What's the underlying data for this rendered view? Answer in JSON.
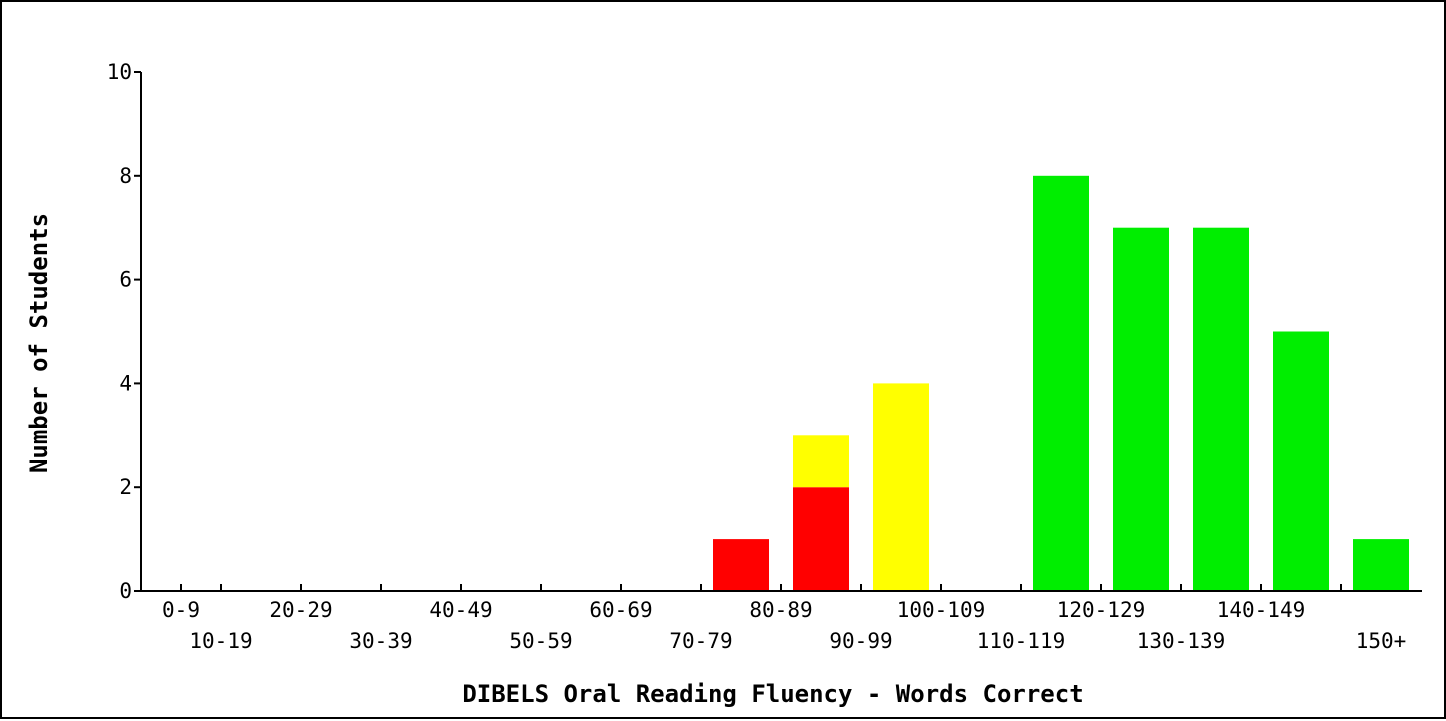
{
  "chart_data": {
    "type": "bar",
    "stacked": true,
    "title": "",
    "xlabel": "DIBELS Oral Reading Fluency - Words Correct",
    "ylabel": "Number of Students",
    "ylim": [
      0,
      10
    ],
    "yticks": [
      "0",
      "2",
      "4",
      "6",
      "8",
      "10"
    ],
    "categories": [
      "0-9",
      "10-19",
      "20-29",
      "30-39",
      "40-49",
      "50-59",
      "60-69",
      "70-79",
      "80-89",
      "90-99",
      "100-109",
      "110-119",
      "120-129",
      "130-139",
      "140-149",
      "150+"
    ],
    "series": [
      {
        "color": "#ff0000",
        "values": [
          0,
          0,
          0,
          0,
          0,
          0,
          0,
          1,
          2,
          0,
          0,
          0,
          0,
          0,
          0,
          0
        ]
      },
      {
        "color": "#ffff00",
        "values": [
          0,
          0,
          0,
          0,
          0,
          0,
          0,
          0,
          1,
          4,
          0,
          0,
          0,
          0,
          0,
          0
        ]
      },
      {
        "color": "#00ee00",
        "values": [
          0,
          0,
          0,
          0,
          0,
          0,
          0,
          0,
          0,
          0,
          0,
          8,
          7,
          7,
          5,
          1
        ]
      }
    ],
    "grid": false,
    "legend": "none"
  }
}
